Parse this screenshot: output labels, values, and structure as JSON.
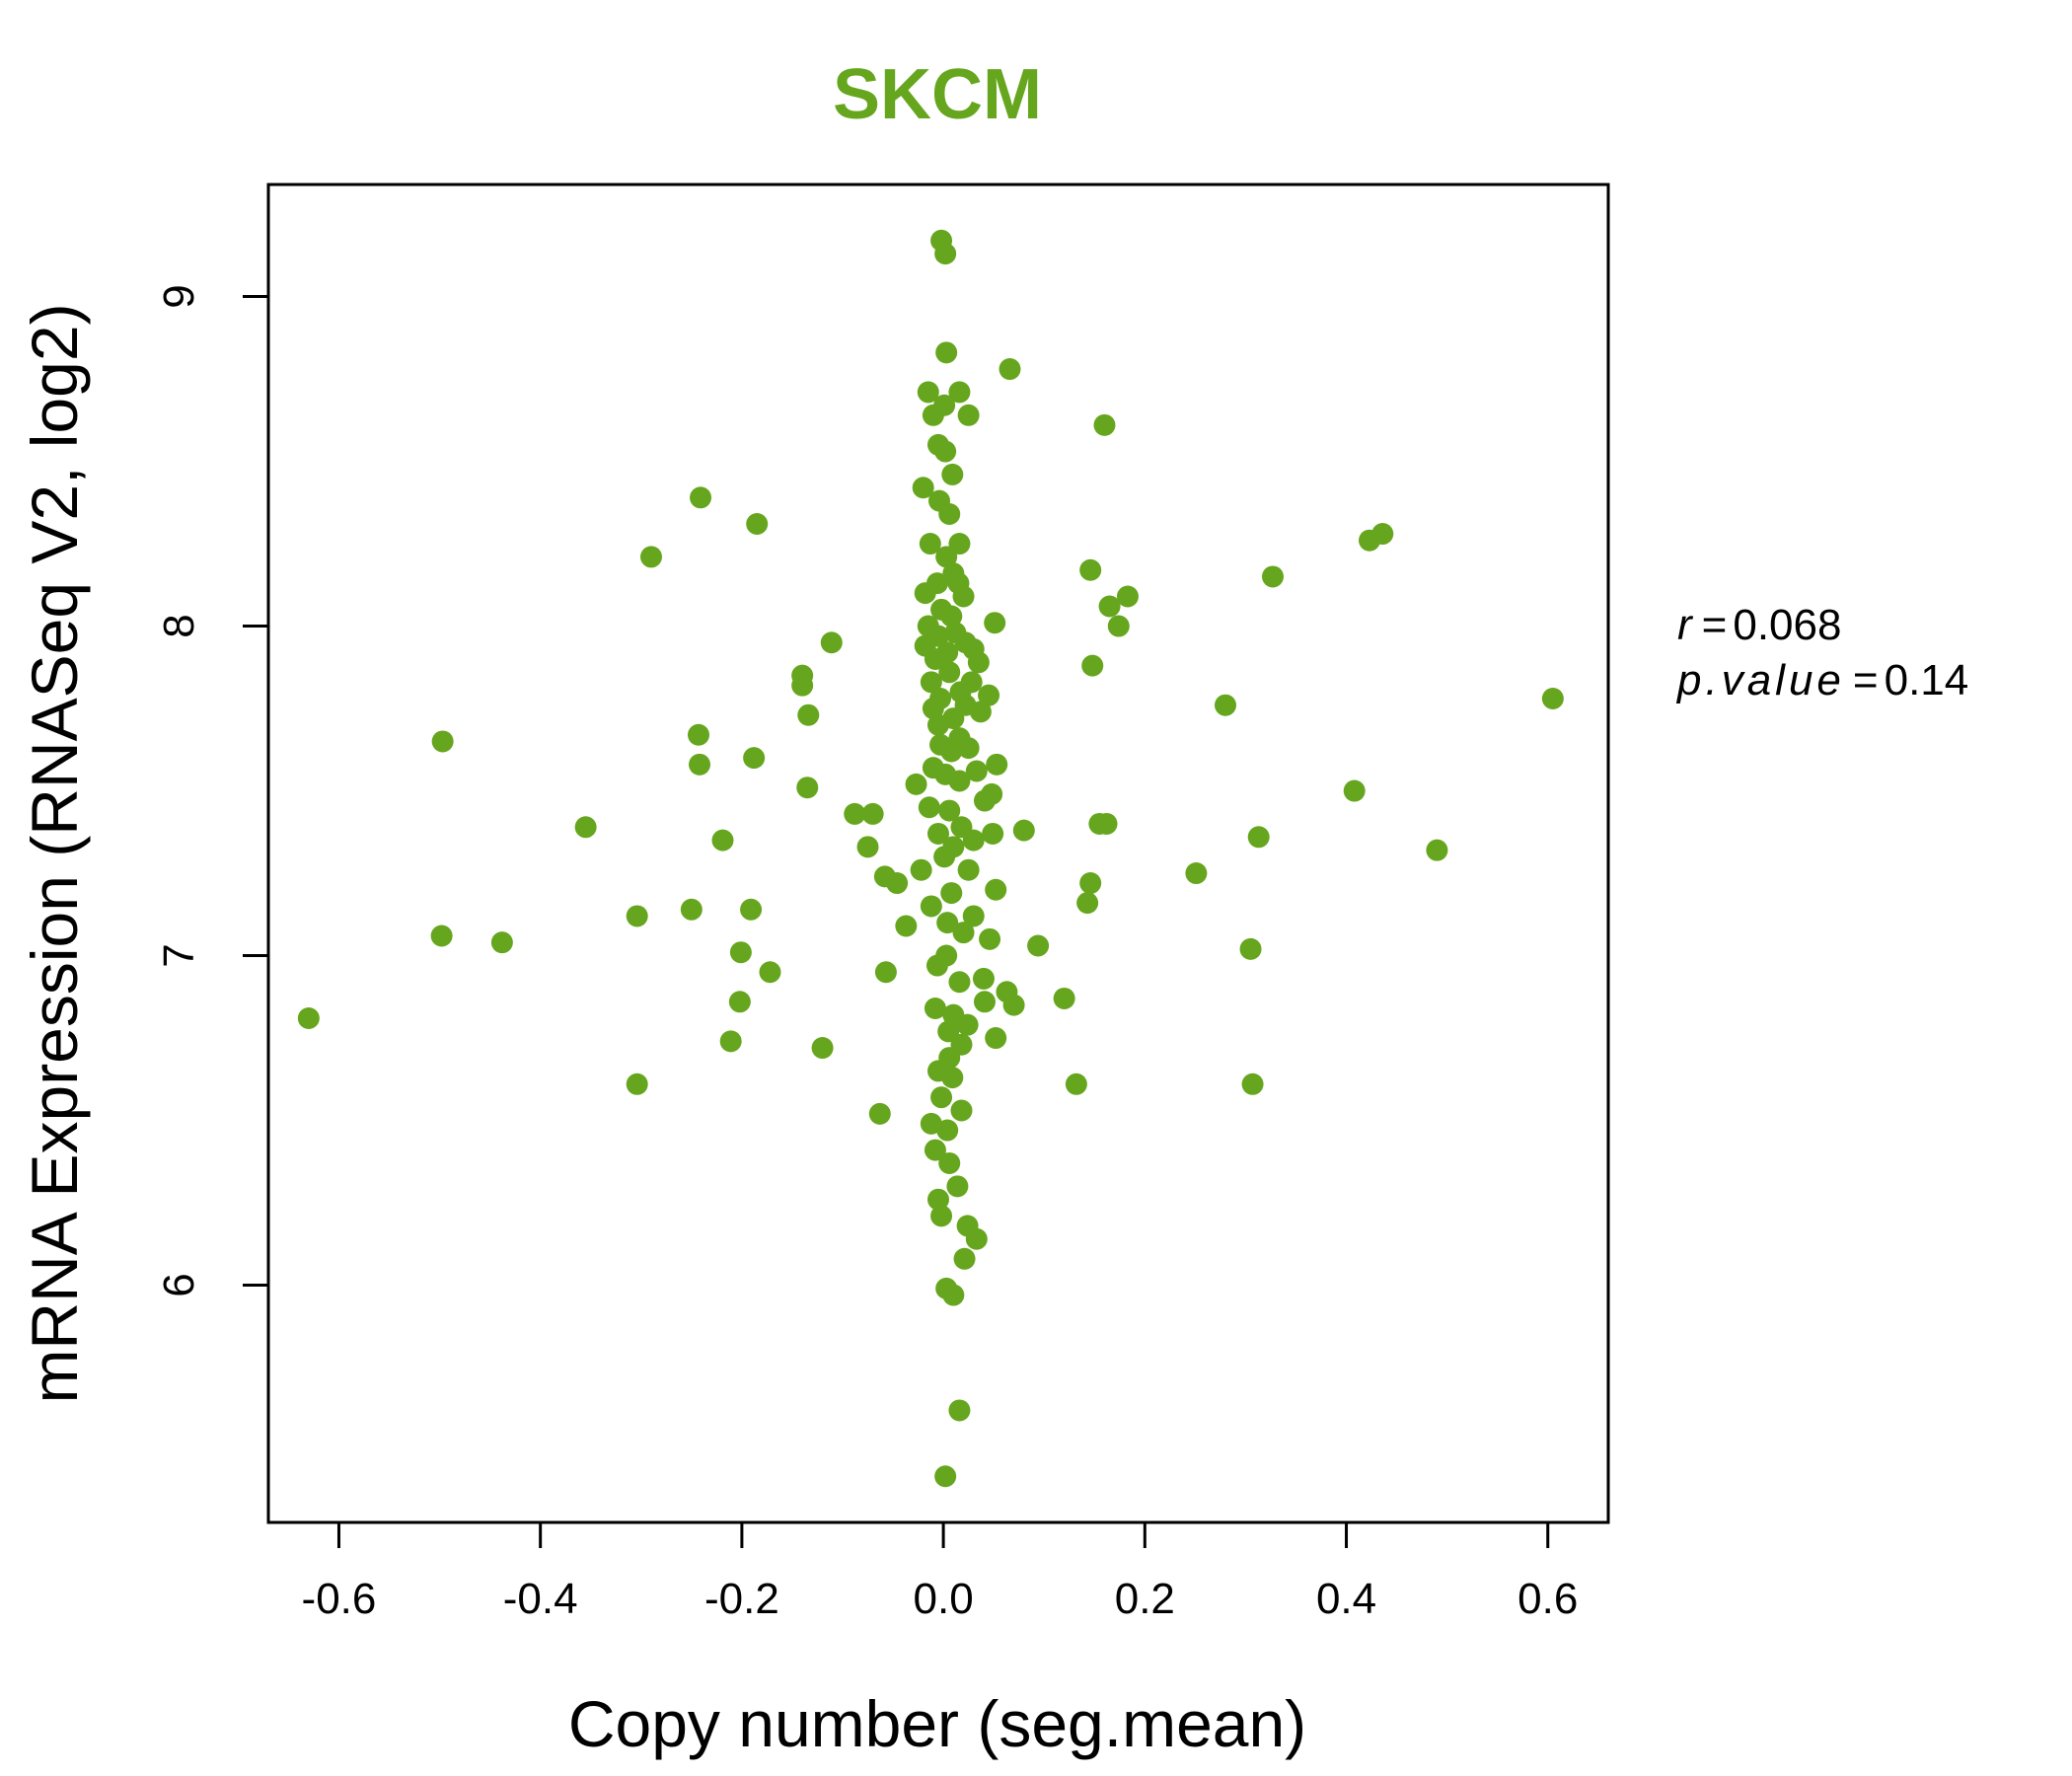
{
  "chart_data": {
    "type": "scatter",
    "title": "SKCM",
    "xlabel": "Copy number (seg.mean)",
    "ylabel": "mRNA Expression (RNASeq V2, log2)",
    "xlim": [
      -0.67,
      0.66
    ],
    "ylim": [
      5.28,
      9.34
    ],
    "x_ticks": [
      -0.6,
      -0.4,
      -0.2,
      0.0,
      0.2,
      0.4,
      0.6
    ],
    "x_tick_labels": [
      "-0.6",
      "-0.4",
      "-0.2",
      "0.0",
      "0.2",
      "0.4",
      "0.6"
    ],
    "y_ticks": [
      6,
      7,
      8,
      9
    ],
    "y_tick_labels": [
      "6",
      "7",
      "8",
      "9"
    ],
    "grid": false,
    "point_color": "#66A61E",
    "stats": {
      "r_label": "r",
      "r_value": "0.068",
      "p_label": "p.value",
      "p_value": "0.14"
    },
    "points": [
      [
        -0.002,
        9.17
      ],
      [
        0.002,
        9.13
      ],
      [
        0.003,
        8.83
      ],
      [
        0.066,
        8.78
      ],
      [
        -0.015,
        8.71
      ],
      [
        0.016,
        8.71
      ],
      [
        0.001,
        8.67
      ],
      [
        0.025,
        8.64
      ],
      [
        -0.01,
        8.64
      ],
      [
        0.16,
        8.61
      ],
      [
        -0.005,
        8.55
      ],
      [
        0.002,
        8.53
      ],
      [
        0.009,
        8.46
      ],
      [
        -0.02,
        8.42
      ],
      [
        -0.241,
        8.39
      ],
      [
        -0.004,
        8.38
      ],
      [
        0.006,
        8.34
      ],
      [
        -0.185,
        8.31
      ],
      [
        0.436,
        8.28
      ],
      [
        0.423,
        8.26
      ],
      [
        0.016,
        8.25
      ],
      [
        -0.013,
        8.25
      ],
      [
        -0.29,
        8.21
      ],
      [
        0.003,
        8.21
      ],
      [
        0.146,
        8.17
      ],
      [
        0.01,
        8.16
      ],
      [
        0.327,
        8.15
      ],
      [
        -0.006,
        8.13
      ],
      [
        0.015,
        8.13
      ],
      [
        -0.018,
        8.1
      ],
      [
        0.183,
        8.09
      ],
      [
        0.02,
        8.09
      ],
      [
        0.165,
        8.06
      ],
      [
        -0.002,
        8.05
      ],
      [
        0.008,
        8.03
      ],
      [
        0.051,
        8.01
      ],
      [
        -0.015,
        8.0
      ],
      [
        0.174,
        8.0
      ],
      [
        0.012,
        7.98
      ],
      [
        -0.005,
        7.97
      ],
      [
        0.022,
        7.95
      ],
      [
        -0.111,
        7.95
      ],
      [
        -0.018,
        7.94
      ],
      [
        0.03,
        7.93
      ],
      [
        0.004,
        7.92
      ],
      [
        -0.008,
        7.9
      ],
      [
        0.035,
        7.89
      ],
      [
        0.148,
        7.88
      ],
      [
        -0.14,
        7.85
      ],
      [
        0.006,
        7.86
      ],
      [
        -0.012,
        7.83
      ],
      [
        0.028,
        7.83
      ],
      [
        -0.14,
        7.82
      ],
      [
        0.017,
        7.8
      ],
      [
        0.045,
        7.79
      ],
      [
        0.605,
        7.78
      ],
      [
        -0.003,
        7.78
      ],
      [
        0.28,
        7.76
      ],
      [
        0.022,
        7.76
      ],
      [
        -0.01,
        7.75
      ],
      [
        0.037,
        7.74
      ],
      [
        -0.134,
        7.73
      ],
      [
        0.01,
        7.72
      ],
      [
        -0.005,
        7.7
      ],
      [
        -0.243,
        7.67
      ],
      [
        0.016,
        7.66
      ],
      [
        -0.497,
        7.65
      ],
      [
        -0.003,
        7.64
      ],
      [
        0.025,
        7.63
      ],
      [
        0.008,
        7.62
      ],
      [
        -0.188,
        7.6
      ],
      [
        0.053,
        7.58
      ],
      [
        -0.242,
        7.58
      ],
      [
        -0.01,
        7.57
      ],
      [
        0.033,
        7.56
      ],
      [
        0.002,
        7.55
      ],
      [
        -0.027,
        7.52
      ],
      [
        0.016,
        7.53
      ],
      [
        -0.135,
        7.51
      ],
      [
        0.408,
        7.5
      ],
      [
        0.048,
        7.49
      ],
      [
        0.041,
        7.47
      ],
      [
        -0.014,
        7.45
      ],
      [
        0.006,
        7.44
      ],
      [
        -0.088,
        7.43
      ],
      [
        -0.07,
        7.43
      ],
      [
        0.162,
        7.4
      ],
      [
        0.155,
        7.4
      ],
      [
        -0.355,
        7.39
      ],
      [
        0.018,
        7.39
      ],
      [
        0.08,
        7.38
      ],
      [
        -0.005,
        7.37
      ],
      [
        0.049,
        7.37
      ],
      [
        0.313,
        7.36
      ],
      [
        -0.219,
        7.35
      ],
      [
        0.03,
        7.35
      ],
      [
        0.01,
        7.33
      ],
      [
        -0.075,
        7.33
      ],
      [
        0.49,
        7.32
      ],
      [
        0.001,
        7.3
      ],
      [
        -0.022,
        7.26
      ],
      [
        0.025,
        7.26
      ],
      [
        -0.058,
        7.24
      ],
      [
        0.251,
        7.25
      ],
      [
        -0.046,
        7.22
      ],
      [
        0.146,
        7.22
      ],
      [
        0.052,
        7.2
      ],
      [
        0.008,
        7.19
      ],
      [
        0.143,
        7.16
      ],
      [
        -0.25,
        7.14
      ],
      [
        -0.191,
        7.14
      ],
      [
        -0.012,
        7.15
      ],
      [
        0.03,
        7.12
      ],
      [
        -0.304,
        7.12
      ],
      [
        0.004,
        7.1
      ],
      [
        -0.037,
        7.09
      ],
      [
        0.02,
        7.07
      ],
      [
        -0.498,
        7.06
      ],
      [
        0.046,
        7.05
      ],
      [
        -0.438,
        7.04
      ],
      [
        0.094,
        7.03
      ],
      [
        0.305,
        7.02
      ],
      [
        -0.201,
        7.01
      ],
      [
        0.003,
        7.0
      ],
      [
        -0.006,
        6.97
      ],
      [
        -0.172,
        6.95
      ],
      [
        -0.057,
        6.95
      ],
      [
        0.04,
        6.93
      ],
      [
        0.016,
        6.92
      ],
      [
        0.063,
        6.89
      ],
      [
        0.12,
        6.87
      ],
      [
        -0.202,
        6.86
      ],
      [
        0.041,
        6.86
      ],
      [
        0.07,
        6.85
      ],
      [
        -0.008,
        6.84
      ],
      [
        0.01,
        6.82
      ],
      [
        -0.63,
        6.81
      ],
      [
        0.024,
        6.79
      ],
      [
        0.005,
        6.77
      ],
      [
        -0.211,
        6.74
      ],
      [
        0.052,
        6.75
      ],
      [
        0.018,
        6.73
      ],
      [
        -0.12,
        6.72
      ],
      [
        0.006,
        6.69
      ],
      [
        -0.005,
        6.65
      ],
      [
        0.009,
        6.63
      ],
      [
        0.132,
        6.61
      ],
      [
        -0.304,
        6.61
      ],
      [
        0.307,
        6.61
      ],
      [
        -0.002,
        6.57
      ],
      [
        0.018,
        6.53
      ],
      [
        -0.063,
        6.52
      ],
      [
        -0.012,
        6.49
      ],
      [
        0.004,
        6.47
      ],
      [
        -0.008,
        6.41
      ],
      [
        0.006,
        6.37
      ],
      [
        0.014,
        6.3
      ],
      [
        -0.005,
        6.26
      ],
      [
        -0.002,
        6.21
      ],
      [
        0.024,
        6.18
      ],
      [
        0.033,
        6.14
      ],
      [
        0.021,
        6.08
      ],
      [
        0.003,
        5.99
      ],
      [
        0.01,
        5.97
      ],
      [
        0.016,
        5.62
      ],
      [
        0.002,
        5.42
      ]
    ]
  }
}
